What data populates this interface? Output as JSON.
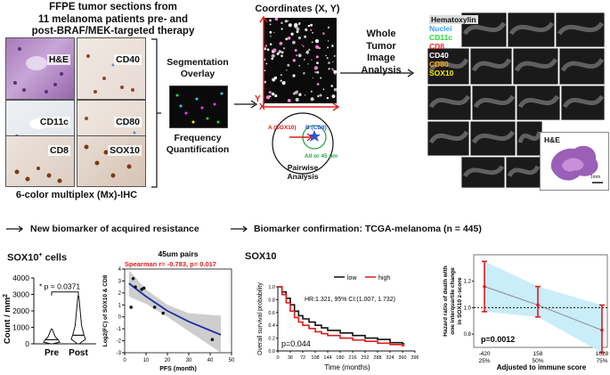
{
  "panel_a": {
    "title_line1": "FFPE tumor sections from",
    "title_line2": "11 melanoma patients pre- and",
    "title_line3": "post-BRAF/MEK-targeted therapy",
    "tiles": [
      "H&E",
      "CD40",
      "CD11c",
      "CD80",
      "CD8",
      "SOX10"
    ],
    "caption": "6-color multiplex (Mx)-IHC",
    "segmentation_line1": "Segmentation",
    "segmentation_line2": "Overlay",
    "frequency_line1": "Frequency",
    "frequency_line2": "Quantification",
    "coordinates_title": "Coordinates (X, Y)",
    "axis_y": "Y",
    "axis_x": "X",
    "pairwise_a": "A (SOX10)",
    "pairwise_b": "B (CD8)",
    "pairwise_radius": "All or 45 µm",
    "pairwise_line1": "Pairwise",
    "pairwise_line2": "Analysis",
    "whole_line1": "Whole",
    "whole_line2": "Tumor",
    "whole_line3": "Image",
    "whole_line4": "Analysis"
  },
  "whole_tumor": {
    "legend": [
      {
        "label": "Hematoxylin",
        "color": "#ffffff"
      },
      {
        "label": "Nuclei",
        "color": "#3aa0ff"
      },
      {
        "label": "CD11c",
        "color": "#22dd33"
      },
      {
        "label": "CD8",
        "color": "#ff2222"
      },
      {
        "label": "CD40",
        "color": "#ffffff"
      },
      {
        "label": "CD80",
        "color": "#ffaa00"
      },
      {
        "label": "SOX10",
        "color": "#ffee00"
      }
    ],
    "he_label": "H&E",
    "scale_label": "1mm"
  },
  "section_b": {
    "heading": "New biomarker of acquired resistance"
  },
  "section_c": {
    "heading": "Biomarker confirmation: TCGA-melanoma (n = 445)"
  },
  "violin": {
    "title_main": "SOX10",
    "title_sup": "+",
    "title_rest": " cells",
    "ylabel": "Count / mm",
    "ylabel_sup": "2",
    "pvalue": "* p = 0.0371",
    "chart_data": {
      "type": "violin",
      "categories": [
        "Pre",
        "Post"
      ],
      "ylim": [
        0,
        4000
      ],
      "yticks": [
        "0",
        "1000",
        "2000",
        "3000",
        "4000"
      ],
      "pre": {
        "min": 0,
        "q1": 100,
        "median": 250,
        "q3": 420,
        "max": 900
      },
      "post": {
        "min": 0,
        "q1": 280,
        "median": 520,
        "q3": 1100,
        "max": 2900
      }
    }
  },
  "scatter": {
    "chart_data": {
      "type": "scatter",
      "title": "45um pairs",
      "annotation": "Spearman r= -0.783, p= 0.017",
      "xlabel": "PFS (month)",
      "ylabel": "Log2(FC) of SOX10 & CD8",
      "xlim": [
        0,
        50
      ],
      "ylim": [
        -3,
        4
      ],
      "xticks": [
        "0",
        "10",
        "20",
        "30",
        "40",
        "50"
      ],
      "yticks": [
        "-3",
        "-2",
        "-1",
        "0",
        "1",
        "2",
        "3",
        "4"
      ],
      "x": [
        3,
        4,
        5,
        8,
        9,
        14,
        18,
        41
      ],
      "y": [
        0.8,
        3.2,
        2.5,
        2.3,
        2.4,
        0.8,
        0.3,
        -1.9
      ],
      "fit": [
        [
          2,
          2.8
        ],
        [
          10,
          1.7
        ],
        [
          20,
          0.5
        ],
        [
          30,
          -0.4
        ],
        [
          45,
          -1.5
        ]
      ]
    }
  },
  "km": {
    "chart_data": {
      "type": "line",
      "title": "SOX10",
      "legend": [
        "low",
        "high"
      ],
      "annotation": "HR:1.321, 95% CI:(1.007, 1.732)",
      "pvalue": "p=0.044",
      "xlabel": "Time (months)",
      "ylabel": "Overall survival probability",
      "xlim": [
        0,
        396
      ],
      "ylim": [
        0,
        1
      ],
      "xticks": [
        "0",
        "36",
        "72",
        "108",
        "144",
        "180",
        "216",
        "252",
        "288",
        "324",
        "360",
        "396"
      ],
      "yticks": [
        "0.0",
        "0.2",
        "0.4",
        "0.6",
        "0.8",
        "1.0"
      ],
      "series": [
        {
          "name": "low",
          "color": "#111111",
          "points": [
            [
              0,
              1
            ],
            [
              12,
              0.92
            ],
            [
              24,
              0.82
            ],
            [
              36,
              0.72
            ],
            [
              48,
              0.62
            ],
            [
              60,
              0.55
            ],
            [
              72,
              0.5
            ],
            [
              90,
              0.45
            ],
            [
              108,
              0.4
            ],
            [
              126,
              0.36
            ],
            [
              144,
              0.32
            ],
            [
              180,
              0.28
            ],
            [
              216,
              0.24
            ],
            [
              252,
              0.2
            ],
            [
              288,
              0.18
            ],
            [
              324,
              0.13
            ],
            [
              360,
              0.11
            ]
          ]
        },
        {
          "name": "high",
          "color": "#e01b1b",
          "points": [
            [
              0,
              1
            ],
            [
              12,
              0.88
            ],
            [
              24,
              0.75
            ],
            [
              36,
              0.62
            ],
            [
              48,
              0.52
            ],
            [
              60,
              0.45
            ],
            [
              72,
              0.4
            ],
            [
              90,
              0.35
            ],
            [
              108,
              0.3
            ],
            [
              126,
              0.27
            ],
            [
              144,
              0.24
            ],
            [
              180,
              0.2
            ],
            [
              216,
              0.17
            ],
            [
              252,
              0.15
            ],
            [
              288,
              0.12
            ],
            [
              324,
              0.1
            ],
            [
              360,
              0.08
            ]
          ]
        }
      ]
    }
  },
  "hazard": {
    "chart_data": {
      "type": "line",
      "ylabel_line1": "Hazard ratio of death with",
      "ylabel_line2": "one interquartile change",
      "ylabel_line3": "in SOX10 z-score",
      "xlabel": "Adjusted to immune score",
      "pvalue": "p=0.0012",
      "ylim": [
        0.7,
        1.4
      ],
      "yticks": [
        "0.8",
        "1.0",
        "1.2"
      ],
      "x": [
        -420,
        158,
        1028
      ],
      "xtick_top": [
        "-420",
        "158",
        "1028"
      ],
      "xtick_bottom": [
        "25%",
        "50%",
        "75%"
      ],
      "estimate": [
        1.16,
        1.02,
        0.83
      ],
      "lower": [
        0.97,
        0.93,
        0.66
      ],
      "upper": [
        1.35,
        1.16,
        1.02
      ]
    }
  }
}
